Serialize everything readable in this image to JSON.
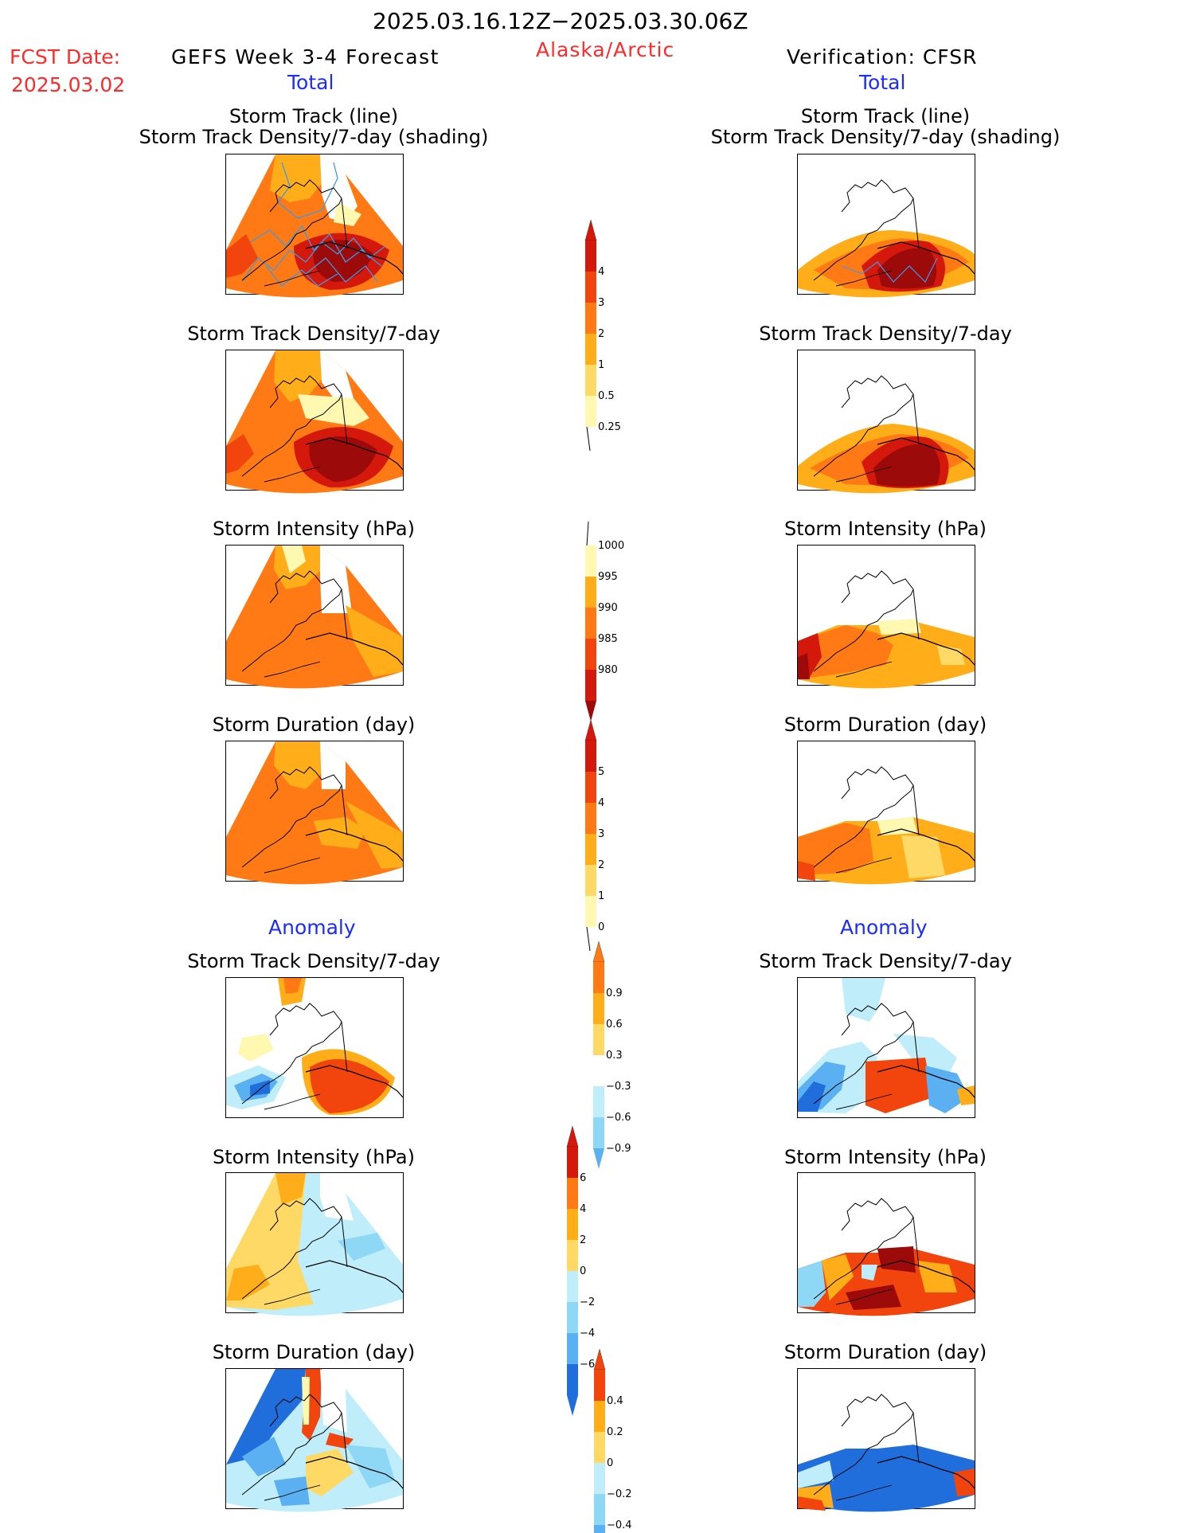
{
  "header": {
    "period": "2025.03.16.12Z−2025.03.30.06Z",
    "fcst_label": "FCST Date:",
    "fcst_date": "2025.03.02",
    "model": "GEFS Week 3-4 Forecast",
    "region": "Alaska/Arctic",
    "verification": "Verification: CFSR",
    "total_left": "Total",
    "total_right": "Total",
    "anomaly_left": "Anomaly",
    "anomaly_right": "Anomaly"
  },
  "titles": {
    "track_line": "Storm Track (line)",
    "track_shading": "Storm Track Density/7-day (shading)",
    "density": "Storm Track Density/7-day",
    "intensity": "Storm Intensity (hPa)",
    "duration": "Storm Duration (day)"
  },
  "colors": {
    "c1": "#fff8b0",
    "c2": "#ffd966",
    "c3": "#ffae1a",
    "c4": "#ff7a14",
    "c5": "#f2450e",
    "c6": "#d4180c",
    "c7": "#9c0a0a",
    "b1": "#bfeefa",
    "b2": "#8fd8f5",
    "b3": "#5ab0f0",
    "b4": "#1f6edc",
    "track": "#3c9ae6"
  },
  "chart_data": [
    {
      "type": "heatmap",
      "name": "forecast total storm track density with tracks",
      "panel": "total-left-1",
      "colorbar": {
        "levels": [
          "4",
          "3",
          "2",
          "1",
          "0.5",
          "0.25"
        ]
      }
    },
    {
      "type": "heatmap",
      "name": "verification total storm track density with tracks",
      "panel": "total-right-1",
      "colorbar": {
        "levels": [
          "4",
          "3",
          "2",
          "1",
          "0.5",
          "0.25"
        ]
      }
    },
    {
      "type": "heatmap",
      "name": "forecast total storm track density",
      "panel": "total-left-2",
      "colorbar": {
        "levels": [
          "4",
          "3",
          "2",
          "1",
          "0.5",
          "0.25"
        ]
      }
    },
    {
      "type": "heatmap",
      "name": "verification total storm track density",
      "panel": "total-right-2",
      "colorbar": {
        "levels": [
          "4",
          "3",
          "2",
          "1",
          "0.5",
          "0.25"
        ]
      }
    },
    {
      "type": "heatmap",
      "name": "forecast total storm intensity",
      "panel": "total-left-3",
      "colorbar": {
        "levels": [
          "1000",
          "995",
          "990",
          "985",
          "980"
        ]
      }
    },
    {
      "type": "heatmap",
      "name": "verification total storm intensity",
      "panel": "total-right-3",
      "colorbar": {
        "levels": [
          "1000",
          "995",
          "990",
          "985",
          "980"
        ]
      }
    },
    {
      "type": "heatmap",
      "name": "forecast total storm duration",
      "panel": "total-left-4",
      "colorbar": {
        "levels": [
          "5",
          "4",
          "3",
          "2",
          "1",
          "0"
        ]
      }
    },
    {
      "type": "heatmap",
      "name": "verification total storm duration",
      "panel": "total-right-4",
      "colorbar": {
        "levels": [
          "5",
          "4",
          "3",
          "2",
          "1",
          "0"
        ]
      }
    },
    {
      "type": "heatmap",
      "name": "forecast anomaly storm track density",
      "panel": "anom-left-1",
      "colorbar": {
        "levels": [
          "0.9",
          "0.6",
          "0.3",
          "−0.3",
          "−0.6",
          "−0.9"
        ]
      }
    },
    {
      "type": "heatmap",
      "name": "verification anomaly storm track density",
      "panel": "anom-right-1",
      "colorbar": {
        "levels": [
          "0.9",
          "0.6",
          "0.3",
          "−0.3",
          "−0.6",
          "−0.9"
        ]
      }
    },
    {
      "type": "heatmap",
      "name": "forecast anomaly storm intensity",
      "panel": "anom-left-2",
      "colorbar": {
        "levels": [
          "6",
          "4",
          "2",
          "0",
          "−2",
          "−4",
          "−6"
        ]
      }
    },
    {
      "type": "heatmap",
      "name": "verification anomaly storm intensity",
      "panel": "anom-right-2",
      "colorbar": {
        "levels": [
          "6",
          "4",
          "2",
          "0",
          "−2",
          "−4",
          "−6"
        ]
      }
    },
    {
      "type": "heatmap",
      "name": "forecast anomaly storm duration",
      "panel": "anom-left-3",
      "colorbar": {
        "levels": [
          "0.4",
          "0.2",
          "0",
          "−0.2",
          "−0.4"
        ]
      }
    },
    {
      "type": "heatmap",
      "name": "verification anomaly storm duration",
      "panel": "anom-right-3",
      "colorbar": {
        "levels": [
          "0.4",
          "0.2",
          "0",
          "−0.2",
          "−0.4"
        ]
      }
    }
  ],
  "colorbars": {
    "density": [
      "4",
      "3",
      "2",
      "1",
      "0.5",
      "0.25"
    ],
    "intensity": [
      "1000",
      "995",
      "990",
      "985",
      "980"
    ],
    "duration": [
      "5",
      "4",
      "3",
      "2",
      "1",
      "0"
    ],
    "anom_density": [
      "0.9",
      "0.6",
      "0.3",
      "−0.3",
      "−0.6",
      "−0.9"
    ],
    "anom_intensity": [
      "6",
      "4",
      "2",
      "0",
      "−2",
      "−4",
      "−6"
    ],
    "anom_duration": [
      "0.4",
      "0.2",
      "0",
      "−0.2",
      "−0.4"
    ]
  }
}
